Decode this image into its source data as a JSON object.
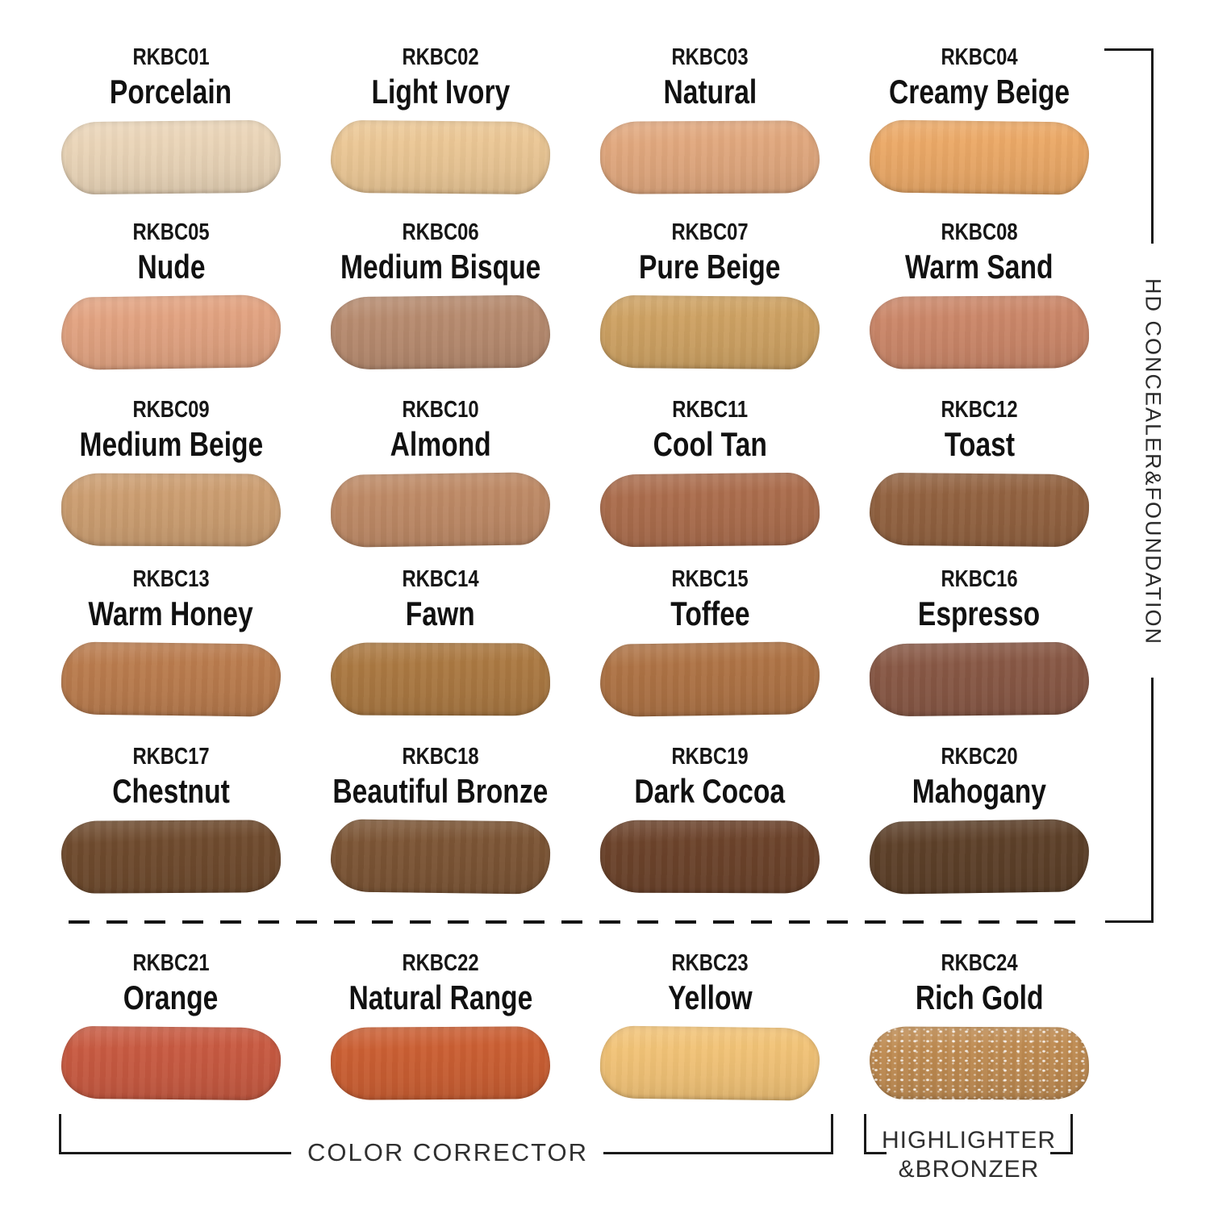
{
  "swatches": [
    {
      "code": "RKBC01",
      "name": "Porcelain",
      "color": "#EAD5B8"
    },
    {
      "code": "RKBC02",
      "name": "Light Ivory",
      "color": "#EBC795"
    },
    {
      "code": "RKBC03",
      "name": "Natural",
      "color": "#E1A87E"
    },
    {
      "code": "RKBC04",
      "name": "Creamy Beige",
      "color": "#EBA967"
    },
    {
      "code": "RKBC05",
      "name": "Nude",
      "color": "#E2A381"
    },
    {
      "code": "RKBC06",
      "name": "Medium Bisque",
      "color": "#B78B6F"
    },
    {
      "code": "RKBC07",
      "name": "Pure Beige",
      "color": "#CEA263"
    },
    {
      "code": "RKBC08",
      "name": "Warm Sand",
      "color": "#CB8769"
    },
    {
      "code": "RKBC09",
      "name": "Medium Beige",
      "color": "#CC9E71"
    },
    {
      "code": "RKBC10",
      "name": "Almond",
      "color": "#BE8A66"
    },
    {
      "code": "RKBC11",
      "name": "Cool Tan",
      "color": "#AB6D4D"
    },
    {
      "code": "RKBC12",
      "name": "Toast",
      "color": "#926240"
    },
    {
      "code": "RKBC13",
      "name": "Warm Honey",
      "color": "#BA7C4E"
    },
    {
      "code": "RKBC14",
      "name": "Fawn",
      "color": "#AB7942"
    },
    {
      "code": "RKBC15",
      "name": "Toffee",
      "color": "#AE7345"
    },
    {
      "code": "RKBC16",
      "name": "Espresso",
      "color": "#885845"
    },
    {
      "code": "RKBC17",
      "name": "Chestnut",
      "color": "#6F4B2E"
    },
    {
      "code": "RKBC18",
      "name": "Beautiful Bronze",
      "color": "#7C5535"
    },
    {
      "code": "RKBC19",
      "name": "Dark Cocoa",
      "color": "#6C432B"
    },
    {
      "code": "RKBC20",
      "name": "Mahogany",
      "color": "#5D4029"
    },
    {
      "code": "RKBC21",
      "name": "Orange",
      "color": "#C85A41"
    },
    {
      "code": "RKBC22",
      "name": "Natural Range",
      "color": "#CB5F33"
    },
    {
      "code": "RKBC23",
      "name": "Yellow",
      "color": "#F2C377"
    },
    {
      "code": "RKBC24",
      "name": "Rich Gold",
      "color": "#BE8A50",
      "sparkle": true
    }
  ],
  "labels": {
    "right_bracket": "HD CONCEALER&FOUNDATION",
    "bottom_left_bracket": "COLOR CORRECTOR",
    "bottom_right_bracket_line1": "HIGHLIGHTER",
    "bottom_right_bracket_line2": "&BRONZER"
  },
  "colors": {
    "line": "#1a1a1a",
    "label_text": "#2f2f2f",
    "swatch_text": "#111111"
  }
}
